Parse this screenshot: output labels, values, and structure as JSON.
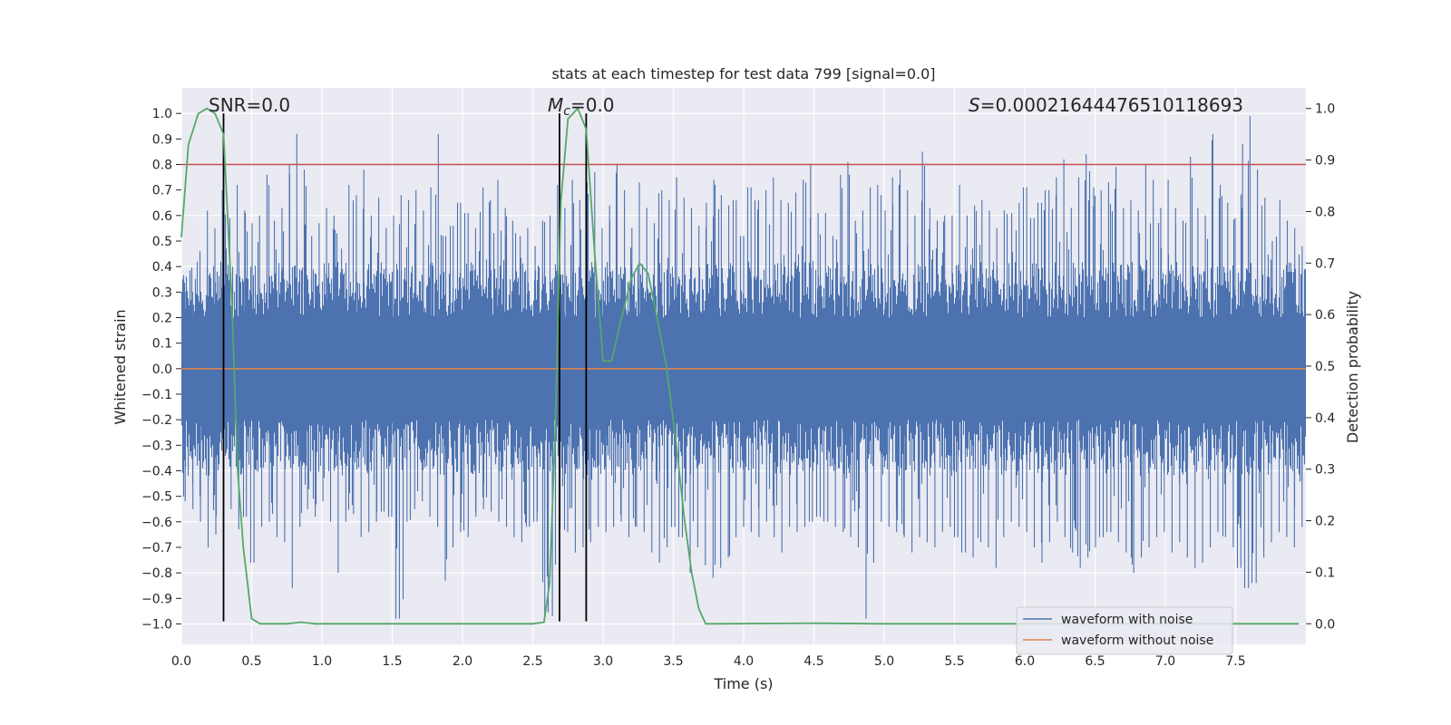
{
  "chart_data": {
    "type": "line",
    "title": "stats at each timestep for test data 799 [signal=0.0]",
    "xlabel": "Time (s)",
    "ylabel": "Whitened strain",
    "y2label": "Detection probability",
    "xlim": [
      0.0,
      8.0
    ],
    "ylim": [
      -1.08,
      1.1
    ],
    "y2lim": [
      -0.04,
      1.04
    ],
    "x_ticks": [
      "0.0",
      "0.5",
      "1.0",
      "1.5",
      "2.0",
      "2.5",
      "3.0",
      "3.5",
      "4.0",
      "4.5",
      "5.0",
      "5.5",
      "6.0",
      "6.5",
      "7.0",
      "7.5"
    ],
    "y_ticks": [
      "1.0",
      "0.9",
      "0.8",
      "0.7",
      "0.6",
      "0.5",
      "0.4",
      "0.3",
      "0.2",
      "0.1",
      "0.0",
      "−0.1",
      "−0.2",
      "−0.3",
      "−0.4",
      "−0.5",
      "−0.6",
      "−0.7",
      "−0.8",
      "−0.9",
      "−1.0"
    ],
    "y2_ticks": [
      "1.0",
      "0.9",
      "0.8",
      "0.7",
      "0.6",
      "0.5",
      "0.4",
      "0.3",
      "0.2",
      "0.1",
      "0.0"
    ],
    "grid": true,
    "legend_position": "lower-right",
    "annotations": {
      "snr": "SNR=0.0",
      "mc_symbol": "M",
      "mc_subscript": "c",
      "mc_value": "=0.0",
      "s_symbol": "S",
      "s_value": "=0.00021644476510118693"
    },
    "threshold": 0.8,
    "vertical_markers": [
      0.3,
      2.69,
      2.88
    ],
    "series": [
      {
        "name": "waveform with noise",
        "color": "#4c72b0",
        "axis": "left",
        "envelope_pos": [
          0.3,
          0.3,
          0.46,
          0.62,
          0.55,
          0.7,
          0.59,
          0.72,
          0.62,
          0.57,
          0.6,
          0.76,
          0.58,
          0.63,
          0.8,
          0.92,
          0.78,
          0.52,
          0.57,
          0.63,
          0.6,
          0.47,
          0.72,
          0.68,
          0.78,
          0.6,
          0.67,
          0.55,
          0.6,
          0.68,
          0.66,
          0.7,
          0.62,
          0.71,
          0.92,
          0.52,
          0.56,
          0.65,
          0.61,
          0.55,
          0.71,
          0.66,
          0.74,
          0.63,
          0.58,
          0.52,
          0.55,
          0.48,
          0.58,
          0.6,
          0.72,
          0.63,
          0.74,
          0.66,
          0.73,
          0.77,
          0.55,
          0.64,
          0.8,
          0.7,
          0.55,
          0.73,
          0.63,
          0.57,
          0.7,
          0.66,
          0.75,
          0.67,
          0.63,
          0.56,
          0.65,
          0.74,
          0.68,
          0.64,
          0.66,
          0.52,
          0.71,
          0.66,
          0.7,
          0.75,
          0.66,
          0.65,
          0.69,
          0.74,
          0.8,
          0.61,
          0.61,
          0.52,
          0.76,
          0.81,
          0.58,
          0.62,
          0.71,
          0.72,
          0.62,
          0.75,
          0.78,
          0.7,
          0.6,
          0.85,
          0.63,
          0.58,
          0.6,
          0.6,
          0.72,
          0.6,
          0.64,
          0.66,
          0.62,
          0.55,
          0.62,
          0.61,
          0.65,
          0.71,
          0.59,
          0.65,
          0.7,
          0.75,
          0.82,
          0.63,
          0.75,
          0.84,
          0.71,
          0.7,
          0.73,
          0.79,
          0.63,
          0.66,
          0.62,
          0.8,
          0.74,
          0.63,
          0.74,
          0.63,
          0.58,
          0.83,
          0.63,
          0.6,
          0.92,
          0.72,
          0.65,
          0.59,
          0.88,
          0.99,
          0.78,
          0.67,
          0.5,
          0.66,
          0.58,
          0.55,
          0.48
        ],
        "envelope_neg": [
          -0.52,
          -0.55,
          -0.6,
          -0.7,
          -0.65,
          -0.72,
          -0.55,
          -0.63,
          -0.58,
          -0.76,
          -0.62,
          -0.6,
          -0.66,
          -0.68,
          -0.86,
          -0.62,
          -0.55,
          -0.58,
          -0.52,
          -0.6,
          -0.8,
          -0.6,
          -0.57,
          -0.66,
          -0.64,
          -0.6,
          -0.56,
          -0.58,
          -0.98,
          -0.6,
          -0.55,
          -0.52,
          -0.58,
          -0.62,
          -0.83,
          -0.7,
          -0.64,
          -0.66,
          -0.58,
          -0.55,
          -0.56,
          -0.6,
          -0.62,
          -0.66,
          -0.68,
          -0.62,
          -0.6,
          -0.97,
          -0.97,
          -0.62,
          -0.64,
          -0.72,
          -0.7,
          -0.68,
          -0.62,
          -0.64,
          -0.62,
          -0.6,
          -0.66,
          -0.62,
          -0.64,
          -0.72,
          -0.76,
          -0.7,
          -0.62,
          -0.66,
          -0.8,
          -0.7,
          -0.77,
          -0.82,
          -0.78,
          -0.74,
          -0.66,
          -0.62,
          -0.64,
          -0.66,
          -0.6,
          -0.66,
          -0.72,
          -0.62,
          -0.64,
          -0.62,
          -0.6,
          -0.58,
          -0.6,
          -0.62,
          -0.64,
          -0.66,
          -0.7,
          -0.98,
          -0.76,
          -0.6,
          -0.62,
          -0.64,
          -0.66,
          -0.72,
          -0.66,
          -0.68,
          -0.7,
          -0.64,
          -0.62,
          -0.66,
          -0.72,
          -0.74,
          -0.68,
          -0.7,
          -0.78,
          -0.66,
          -0.6,
          -0.62,
          -0.64,
          -0.7,
          -0.76,
          -0.68,
          -0.6,
          -0.66,
          -0.72,
          -0.78,
          -0.74,
          -0.7,
          -0.66,
          -0.64,
          -0.68,
          -0.72,
          -0.8,
          -0.74,
          -0.7,
          -0.66,
          -0.64,
          -0.72,
          -0.68,
          -0.74,
          -0.78,
          -0.76,
          -0.7,
          -0.64,
          -0.66,
          -0.7,
          -0.78,
          -0.86,
          -0.84,
          -0.74,
          -0.68,
          -0.64,
          -0.66,
          -0.7,
          -0.62
        ]
      },
      {
        "name": "waveform without noise",
        "color": "#dd8452",
        "axis": "left",
        "x": [
          0.0,
          8.0
        ],
        "y": [
          0.0,
          0.0
        ]
      },
      {
        "name": "detection probability",
        "color": "#55a868",
        "axis": "right",
        "x": [
          0.0,
          0.05,
          0.12,
          0.18,
          0.24,
          0.3,
          0.36,
          0.4,
          0.44,
          0.5,
          0.56,
          0.65,
          0.75,
          0.85,
          0.95,
          1.2,
          1.5,
          2.0,
          2.3,
          2.5,
          2.58,
          2.62,
          2.66,
          2.7,
          2.75,
          2.82,
          2.88,
          2.94,
          3.0,
          3.06,
          3.12,
          3.2,
          3.26,
          3.32,
          3.38,
          3.45,
          3.52,
          3.58,
          3.63,
          3.68,
          3.73,
          3.8,
          4.5,
          5.0,
          6.0,
          7.0,
          7.95
        ],
        "y": [
          0.75,
          0.93,
          0.99,
          1.0,
          0.99,
          0.95,
          0.62,
          0.3,
          0.15,
          0.01,
          0.0,
          0.0,
          0.0,
          0.003,
          0.0,
          0.0,
          0.0,
          0.0,
          0.0,
          0.0,
          0.003,
          0.08,
          0.38,
          0.82,
          0.98,
          1.0,
          0.96,
          0.72,
          0.51,
          0.51,
          0.58,
          0.67,
          0.7,
          0.68,
          0.6,
          0.5,
          0.35,
          0.2,
          0.1,
          0.03,
          0.0,
          0.0,
          0.001,
          0.0,
          0.0,
          0.0,
          0.0
        ]
      }
    ]
  }
}
